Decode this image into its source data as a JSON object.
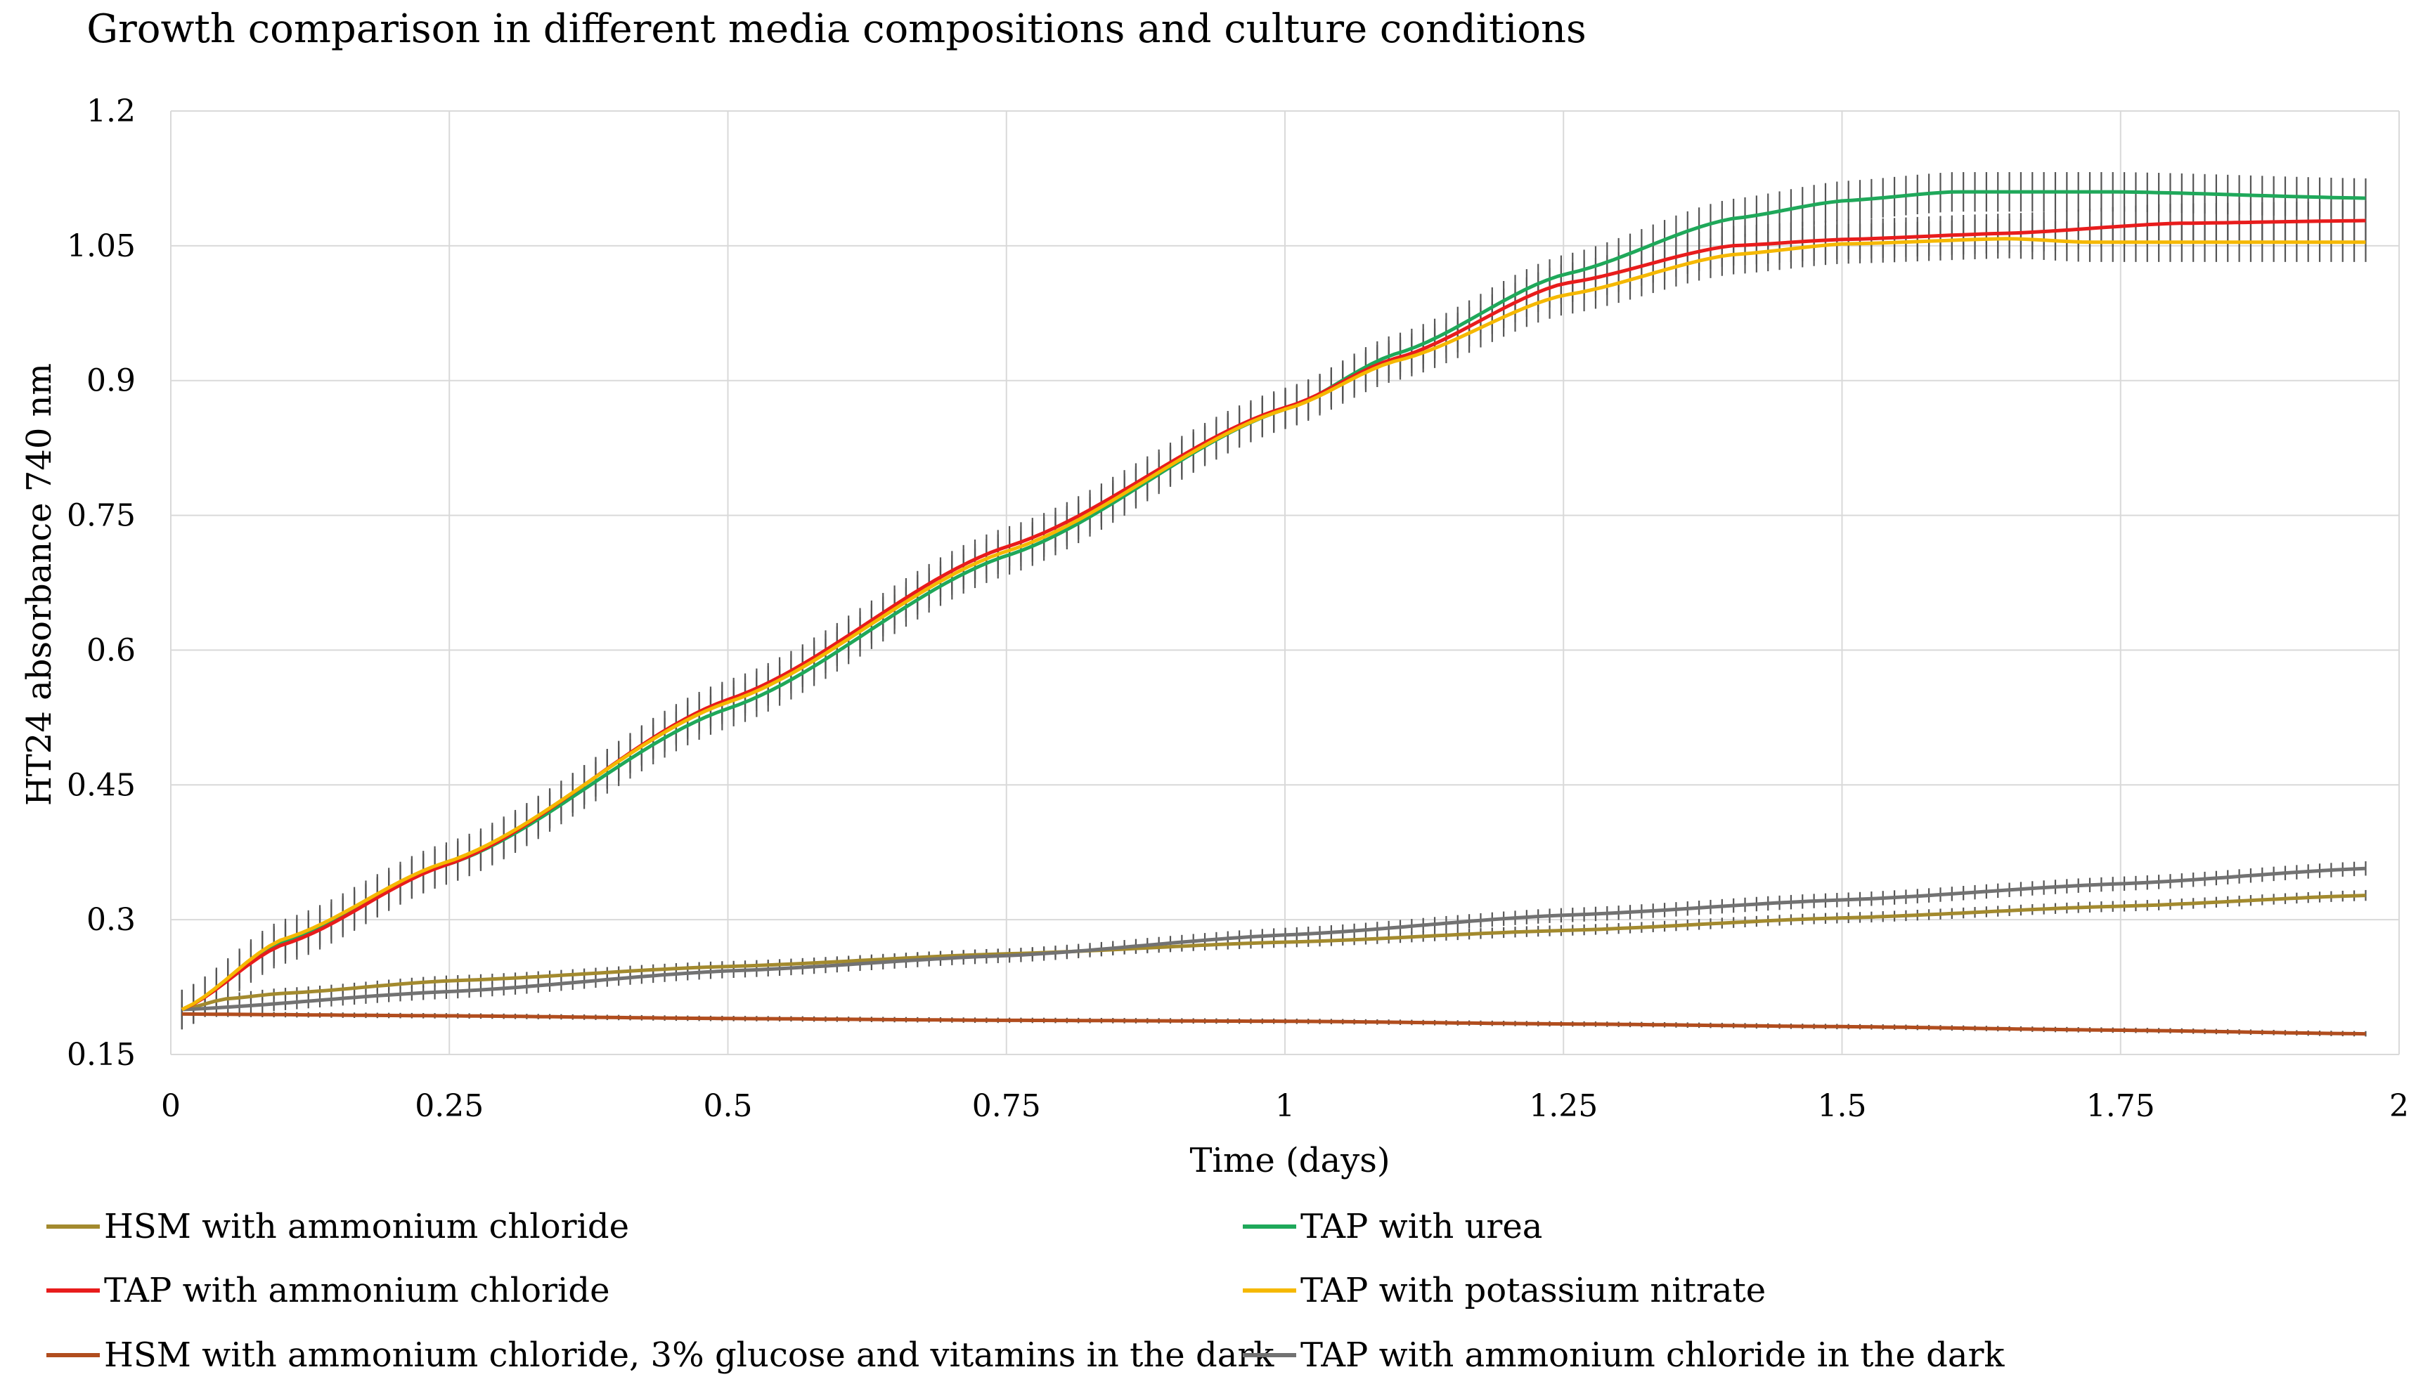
{
  "chart_data": {
    "type": "line",
    "title": "Growth comparison in different media compositions and culture conditions",
    "xlabel": "Time (days)",
    "ylabel": "HT24 absorbance 740 nm",
    "xlim": [
      0,
      2
    ],
    "ylim": [
      0.15,
      1.2
    ],
    "x_ticks": [
      0,
      0.25,
      0.5,
      0.75,
      1,
      1.25,
      1.5,
      1.75,
      2
    ],
    "x_tick_labels": [
      "0",
      "0.25",
      "0.5",
      "0.75",
      "1",
      "1.25",
      "1.5",
      "1.75",
      "2"
    ],
    "y_ticks": [
      0.15,
      0.3,
      0.45,
      0.6,
      0.75,
      0.9,
      1.05,
      1.2
    ],
    "y_tick_labels": [
      "0.15",
      "0.3",
      "0.45",
      "0.6",
      "0.75",
      "0.9",
      "1.05",
      "1.2"
    ],
    "grid": true,
    "error_bars": true,
    "legend_position": "bottom",
    "series": [
      {
        "name": "HSM with ammonium chloride",
        "color": "#a38a2e",
        "err": 0.006,
        "points": [
          [
            0.01,
            0.2
          ],
          [
            0.05,
            0.212
          ],
          [
            0.1,
            0.218
          ],
          [
            0.25,
            0.232
          ],
          [
            0.5,
            0.248
          ],
          [
            0.75,
            0.262
          ],
          [
            1,
            0.275
          ],
          [
            1.25,
            0.288
          ],
          [
            1.5,
            0.302
          ],
          [
            1.75,
            0.315
          ],
          [
            1.97,
            0.327
          ]
        ]
      },
      {
        "name": "TAP with urea",
        "color": "#1fa85a",
        "err": 0.022,
        "points": [
          [
            0.01,
            0.2
          ],
          [
            0.1,
            0.275
          ],
          [
            0.25,
            0.362
          ],
          [
            0.5,
            0.535
          ],
          [
            0.75,
            0.705
          ],
          [
            1,
            0.868
          ],
          [
            1.1,
            0.93
          ],
          [
            1.25,
            1.018
          ],
          [
            1.4,
            1.08
          ],
          [
            1.5,
            1.1
          ],
          [
            1.6,
            1.11
          ],
          [
            1.75,
            1.11
          ],
          [
            1.97,
            1.103
          ]
        ]
      },
      {
        "name": "TAP with ammonium chloride",
        "color": "#e81c1c",
        "err": 0.022,
        "points": [
          [
            0.01,
            0.2
          ],
          [
            0.1,
            0.272
          ],
          [
            0.25,
            0.362
          ],
          [
            0.5,
            0.545
          ],
          [
            0.75,
            0.715
          ],
          [
            1,
            0.87
          ],
          [
            1.1,
            0.925
          ],
          [
            1.25,
            1.008
          ],
          [
            1.4,
            1.05
          ],
          [
            1.5,
            1.057
          ],
          [
            1.65,
            1.064
          ],
          [
            1.8,
            1.075
          ],
          [
            1.97,
            1.078
          ]
        ]
      },
      {
        "name": "TAP with potassium nitrate",
        "color": "#f5b800",
        "err": 0.022,
        "points": [
          [
            0.01,
            0.2
          ],
          [
            0.1,
            0.278
          ],
          [
            0.25,
            0.365
          ],
          [
            0.5,
            0.542
          ],
          [
            0.75,
            0.71
          ],
          [
            1,
            0.868
          ],
          [
            1.1,
            0.922
          ],
          [
            1.25,
            0.995
          ],
          [
            1.4,
            1.04
          ],
          [
            1.5,
            1.052
          ],
          [
            1.65,
            1.058
          ],
          [
            1.72,
            1.054
          ],
          [
            1.97,
            1.054
          ]
        ]
      },
      {
        "name": "HSM with ammonium chloride, 3% glucose and vitamins in the dark",
        "color": "#b14d1e",
        "err": 0.003,
        "points": [
          [
            0.01,
            0.195
          ],
          [
            0.25,
            0.193
          ],
          [
            0.5,
            0.19
          ],
          [
            0.75,
            0.188
          ],
          [
            1,
            0.187
          ],
          [
            1.25,
            0.184
          ],
          [
            1.5,
            0.181
          ],
          [
            1.75,
            0.177
          ],
          [
            1.97,
            0.173
          ]
        ]
      },
      {
        "name": "TAP with ammonium chloride in the dark",
        "color": "#727272",
        "err": 0.008,
        "points": [
          [
            0.01,
            0.2
          ],
          [
            0.25,
            0.22
          ],
          [
            0.5,
            0.243
          ],
          [
            0.75,
            0.26
          ],
          [
            1,
            0.283
          ],
          [
            1.25,
            0.305
          ],
          [
            1.5,
            0.322
          ],
          [
            1.75,
            0.34
          ],
          [
            1.97,
            0.357
          ]
        ]
      }
    ]
  }
}
